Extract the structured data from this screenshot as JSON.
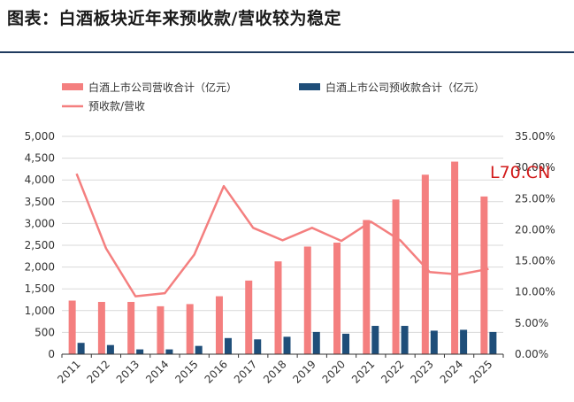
{
  "title": "图表：白酒板块近年来预收款/营收较为稳定",
  "watermark": "L70.CN",
  "colors": {
    "revenue": "#f47f7f",
    "prepaid": "#1f4e79",
    "ratio": "#f47f7f",
    "accent_rule": "#1f3b5f",
    "watermark": "#d21a1a"
  },
  "chart_data": {
    "type": "bar",
    "categories": [
      "2011",
      "2012",
      "2013",
      "2014",
      "2015",
      "2016",
      "2017",
      "2018",
      "2019",
      "2020",
      "2021",
      "2022",
      "2023",
      "2024",
      "2025"
    ],
    "series": [
      {
        "name": "白酒上市公司营收合计（亿元）",
        "type": "bar",
        "axis": "left",
        "values": [
          1230,
          1200,
          1200,
          1100,
          1150,
          1330,
          1690,
          2130,
          2470,
          2560,
          3080,
          3550,
          4120,
          4420,
          3620
        ]
      },
      {
        "name": "白酒上市公司预收款合计（亿元）",
        "type": "bar",
        "axis": "left",
        "values": [
          260,
          210,
          110,
          110,
          190,
          370,
          340,
          400,
          510,
          470,
          650,
          650,
          540,
          560,
          510
        ]
      },
      {
        "name": "预收款/营收",
        "type": "line",
        "axis": "right",
        "values": [
          29.0,
          17.0,
          9.3,
          9.8,
          16.0,
          27.0,
          20.3,
          18.3,
          20.3,
          18.2,
          21.3,
          18.3,
          13.2,
          12.8,
          13.7
        ]
      }
    ],
    "y_left": {
      "min": 0,
      "max": 5000,
      "step": 500,
      "ticks": [
        "0",
        "500",
        "1,000",
        "1,500",
        "2,000",
        "2,500",
        "3,000",
        "3,500",
        "4,000",
        "4,500",
        "5,000"
      ]
    },
    "y_right": {
      "min": 0,
      "max": 35,
      "step": 5,
      "ticks": [
        "0.00%",
        "5.00%",
        "10.00%",
        "15.00%",
        "20.00%",
        "25.00%",
        "30.00%",
        "35.00%"
      ]
    },
    "legend_position": "top",
    "grid": true
  }
}
